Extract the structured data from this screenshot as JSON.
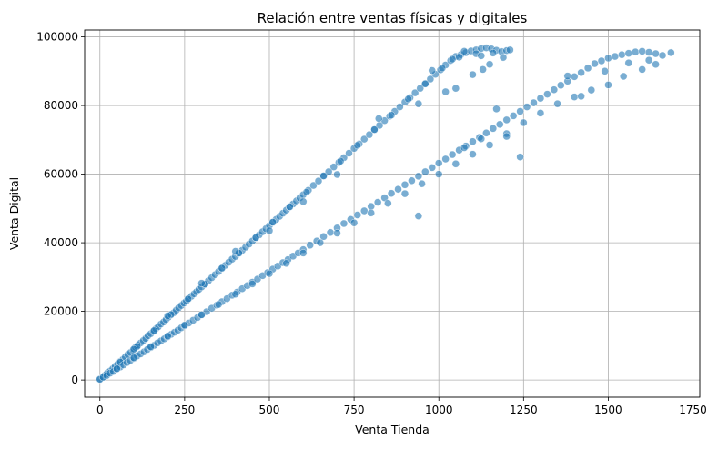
{
  "chart_data": {
    "type": "scatter",
    "title": "Relación entre ventas físicas y digitales",
    "xlabel": "Venta Tienda",
    "ylabel": "Venta Digital",
    "xlim": [
      -45,
      1770
    ],
    "ylim": [
      -5000,
      102000
    ],
    "xticks": [
      0,
      250,
      500,
      750,
      1000,
      1250,
      1500,
      1750
    ],
    "yticks": [
      0,
      20000,
      40000,
      60000,
      80000,
      100000
    ],
    "grid": true,
    "legend": "none",
    "marker_color": "#1f77b4",
    "marker_edge": "#ffffff",
    "marker_alpha": 0.6,
    "series": [
      {
        "band": "upper",
        "points": [
          [
            0,
            300
          ],
          [
            8,
            800
          ],
          [
            15,
            1400
          ],
          [
            22,
            2100
          ],
          [
            30,
            2600
          ],
          [
            38,
            3300
          ],
          [
            45,
            4000
          ],
          [
            52,
            4600
          ],
          [
            60,
            5400
          ],
          [
            68,
            6000
          ],
          [
            75,
            6700
          ],
          [
            82,
            7400
          ],
          [
            90,
            8000
          ],
          [
            98,
            8700
          ],
          [
            105,
            9500
          ],
          [
            112,
            10100
          ],
          [
            120,
            10800
          ],
          [
            128,
            11500
          ],
          [
            135,
            12100
          ],
          [
            142,
            12900
          ],
          [
            150,
            13500
          ],
          [
            158,
            14200
          ],
          [
            165,
            14900
          ],
          [
            172,
            15500
          ],
          [
            180,
            16300
          ],
          [
            188,
            16900
          ],
          [
            195,
            17600
          ],
          [
            202,
            18300
          ],
          [
            210,
            19000
          ],
          [
            218,
            19600
          ],
          [
            225,
            20300
          ],
          [
            232,
            21000
          ],
          [
            240,
            21700
          ],
          [
            248,
            22400
          ],
          [
            255,
            23000
          ],
          [
            262,
            23700
          ],
          [
            270,
            24400
          ],
          [
            278,
            25100
          ],
          [
            285,
            25700
          ],
          [
            292,
            26400
          ],
          [
            300,
            27100
          ],
          [
            310,
            28000
          ],
          [
            320,
            28900
          ],
          [
            330,
            29800
          ],
          [
            340,
            30700
          ],
          [
            350,
            31600
          ],
          [
            360,
            32500
          ],
          [
            370,
            33400
          ],
          [
            380,
            34300
          ],
          [
            390,
            35200
          ],
          [
            400,
            36000
          ],
          [
            410,
            36900
          ],
          [
            420,
            37800
          ],
          [
            430,
            38700
          ],
          [
            440,
            39600
          ],
          [
            450,
            40500
          ],
          [
            460,
            41400
          ],
          [
            470,
            42300
          ],
          [
            480,
            43200
          ],
          [
            490,
            44100
          ],
          [
            500,
            45000
          ],
          [
            510,
            45900
          ],
          [
            520,
            46800
          ],
          [
            530,
            47700
          ],
          [
            540,
            48600
          ],
          [
            550,
            49500
          ],
          [
            560,
            50400
          ],
          [
            570,
            51300
          ],
          [
            580,
            52200
          ],
          [
            590,
            53100
          ],
          [
            600,
            54000
          ],
          [
            615,
            55300
          ],
          [
            630,
            56700
          ],
          [
            645,
            58000
          ],
          [
            660,
            59400
          ],
          [
            675,
            60700
          ],
          [
            690,
            62100
          ],
          [
            705,
            63400
          ],
          [
            720,
            64800
          ],
          [
            735,
            66100
          ],
          [
            750,
            67500
          ],
          [
            765,
            68800
          ],
          [
            780,
            70200
          ],
          [
            795,
            71500
          ],
          [
            810,
            72900
          ],
          [
            825,
            74200
          ],
          [
            840,
            75600
          ],
          [
            855,
            76900
          ],
          [
            870,
            78300
          ],
          [
            885,
            79600
          ],
          [
            900,
            81000
          ],
          [
            915,
            82300
          ],
          [
            930,
            83700
          ],
          [
            945,
            85000
          ],
          [
            960,
            86400
          ],
          [
            975,
            87700
          ],
          [
            990,
            89100
          ],
          [
            1005,
            90400
          ],
          [
            1020,
            91800
          ],
          [
            1035,
            93100
          ],
          [
            1050,
            94300
          ],
          [
            1065,
            94800
          ],
          [
            1080,
            95400
          ],
          [
            1095,
            95900
          ],
          [
            1110,
            96200
          ],
          [
            1125,
            96600
          ],
          [
            1140,
            96800
          ],
          [
            1155,
            96500
          ],
          [
            1170,
            96100
          ],
          [
            1185,
            95700
          ],
          [
            1200,
            96000
          ],
          [
            1210,
            96200
          ],
          [
            20,
            1700
          ],
          [
            60,
            5200
          ],
          [
            110,
            9800
          ],
          [
            160,
            14400
          ],
          [
            210,
            19100
          ],
          [
            260,
            23600
          ],
          [
            310,
            27900
          ],
          [
            360,
            32600
          ],
          [
            410,
            37000
          ],
          [
            460,
            41500
          ],
          [
            510,
            46000
          ],
          [
            560,
            50500
          ],
          [
            610,
            54800
          ],
          [
            660,
            59500
          ],
          [
            710,
            63800
          ],
          [
            760,
            68400
          ],
          [
            810,
            73000
          ],
          [
            860,
            77200
          ],
          [
            910,
            81900
          ],
          [
            960,
            86300
          ],
          [
            1010,
            90900
          ],
          [
            1060,
            94100
          ],
          [
            1110,
            95100
          ],
          [
            1160,
            95300
          ],
          [
            823,
            76200
          ],
          [
            940,
            80500
          ],
          [
            1020,
            84000
          ],
          [
            1100,
            89000
          ],
          [
            1150,
            92000
          ],
          [
            980,
            90200
          ],
          [
            1075,
            95800
          ],
          [
            700,
            59900
          ],
          [
            600,
            52000
          ],
          [
            500,
            43500
          ],
          [
            400,
            37500
          ],
          [
            300,
            28200
          ],
          [
            200,
            18700
          ],
          [
            100,
            9000
          ],
          [
            1050,
            85000
          ],
          [
            1130,
            90500
          ],
          [
            1190,
            94000
          ],
          [
            1040,
            93500
          ],
          [
            1125,
            94500
          ]
        ]
      },
      {
        "band": "lower",
        "points": [
          [
            0,
            200
          ],
          [
            10,
            800
          ],
          [
            20,
            1300
          ],
          [
            30,
            2000
          ],
          [
            40,
            2500
          ],
          [
            50,
            3200
          ],
          [
            60,
            3800
          ],
          [
            70,
            4400
          ],
          [
            80,
            5100
          ],
          [
            90,
            5700
          ],
          [
            100,
            6300
          ],
          [
            110,
            7000
          ],
          [
            120,
            7600
          ],
          [
            130,
            8200
          ],
          [
            140,
            8900
          ],
          [
            150,
            9500
          ],
          [
            160,
            10100
          ],
          [
            170,
            10800
          ],
          [
            180,
            11400
          ],
          [
            190,
            12000
          ],
          [
            200,
            12600
          ],
          [
            210,
            13300
          ],
          [
            220,
            13900
          ],
          [
            230,
            14500
          ],
          [
            240,
            15200
          ],
          [
            250,
            15800
          ],
          [
            262,
            16600
          ],
          [
            275,
            17400
          ],
          [
            288,
            18200
          ],
          [
            300,
            19000
          ],
          [
            315,
            19900
          ],
          [
            330,
            20900
          ],
          [
            345,
            21800
          ],
          [
            360,
            22800
          ],
          [
            375,
            23700
          ],
          [
            390,
            24700
          ],
          [
            405,
            25600
          ],
          [
            420,
            26600
          ],
          [
            435,
            27500
          ],
          [
            450,
            28500
          ],
          [
            465,
            29400
          ],
          [
            480,
            30400
          ],
          [
            495,
            31300
          ],
          [
            510,
            32300
          ],
          [
            525,
            33200
          ],
          [
            540,
            34200
          ],
          [
            555,
            35100
          ],
          [
            570,
            36100
          ],
          [
            585,
            37000
          ],
          [
            600,
            38000
          ],
          [
            620,
            39300
          ],
          [
            640,
            40500
          ],
          [
            660,
            41800
          ],
          [
            680,
            43000
          ],
          [
            700,
            44300
          ],
          [
            720,
            45600
          ],
          [
            740,
            46800
          ],
          [
            760,
            48100
          ],
          [
            780,
            49300
          ],
          [
            800,
            50600
          ],
          [
            820,
            51800
          ],
          [
            840,
            53100
          ],
          [
            860,
            54400
          ],
          [
            880,
            55600
          ],
          [
            900,
            56900
          ],
          [
            920,
            58100
          ],
          [
            940,
            59400
          ],
          [
            960,
            60700
          ],
          [
            980,
            61900
          ],
          [
            1000,
            63200
          ],
          [
            1020,
            64400
          ],
          [
            1040,
            65700
          ],
          [
            1060,
            67000
          ],
          [
            1080,
            68200
          ],
          [
            1100,
            69500
          ],
          [
            1120,
            70700
          ],
          [
            1140,
            72000
          ],
          [
            1160,
            73300
          ],
          [
            1180,
            74500
          ],
          [
            1200,
            75800
          ],
          [
            1220,
            77000
          ],
          [
            1240,
            78300
          ],
          [
            1260,
            79600
          ],
          [
            1280,
            80800
          ],
          [
            1300,
            82100
          ],
          [
            1320,
            83300
          ],
          [
            1340,
            84600
          ],
          [
            1360,
            85900
          ],
          [
            1380,
            87100
          ],
          [
            1400,
            88400
          ],
          [
            1420,
            89600
          ],
          [
            1440,
            90900
          ],
          [
            1460,
            92200
          ],
          [
            1480,
            93000
          ],
          [
            1500,
            93800
          ],
          [
            1520,
            94300
          ],
          [
            1540,
            94800
          ],
          [
            1560,
            95200
          ],
          [
            1580,
            95600
          ],
          [
            1600,
            95800
          ],
          [
            1620,
            95500
          ],
          [
            1640,
            95100
          ],
          [
            1660,
            94600
          ],
          [
            1685,
            95400
          ],
          [
            1600,
            90500
          ],
          [
            1640,
            92000
          ],
          [
            1545,
            88500
          ],
          [
            1500,
            86000
          ],
          [
            1450,
            84500
          ],
          [
            1400,
            82500
          ],
          [
            1350,
            80500
          ],
          [
            1300,
            77800
          ],
          [
            1250,
            75000
          ],
          [
            1200,
            71800
          ],
          [
            1150,
            68500
          ],
          [
            1100,
            65800
          ],
          [
            1050,
            63000
          ],
          [
            1000,
            60000
          ],
          [
            950,
            57200
          ],
          [
            900,
            54300
          ],
          [
            850,
            51500
          ],
          [
            800,
            48700
          ],
          [
            750,
            45800
          ],
          [
            700,
            42800
          ],
          [
            650,
            40000
          ],
          [
            600,
            37000
          ],
          [
            550,
            34000
          ],
          [
            500,
            31000
          ],
          [
            450,
            28000
          ],
          [
            400,
            25000
          ],
          [
            350,
            22000
          ],
          [
            300,
            19000
          ],
          [
            250,
            16000
          ],
          [
            200,
            12800
          ],
          [
            150,
            9700
          ],
          [
            100,
            6500
          ],
          [
            50,
            3300
          ],
          [
            1240,
            65000
          ],
          [
            1200,
            71000
          ],
          [
            940,
            47800
          ],
          [
            1170,
            79000
          ],
          [
            1125,
            70300
          ],
          [
            1075,
            67700
          ],
          [
            1420,
            82700
          ],
          [
            1380,
            88600
          ],
          [
            1490,
            90000
          ],
          [
            1560,
            92400
          ],
          [
            1620,
            93200
          ]
        ]
      }
    ]
  }
}
